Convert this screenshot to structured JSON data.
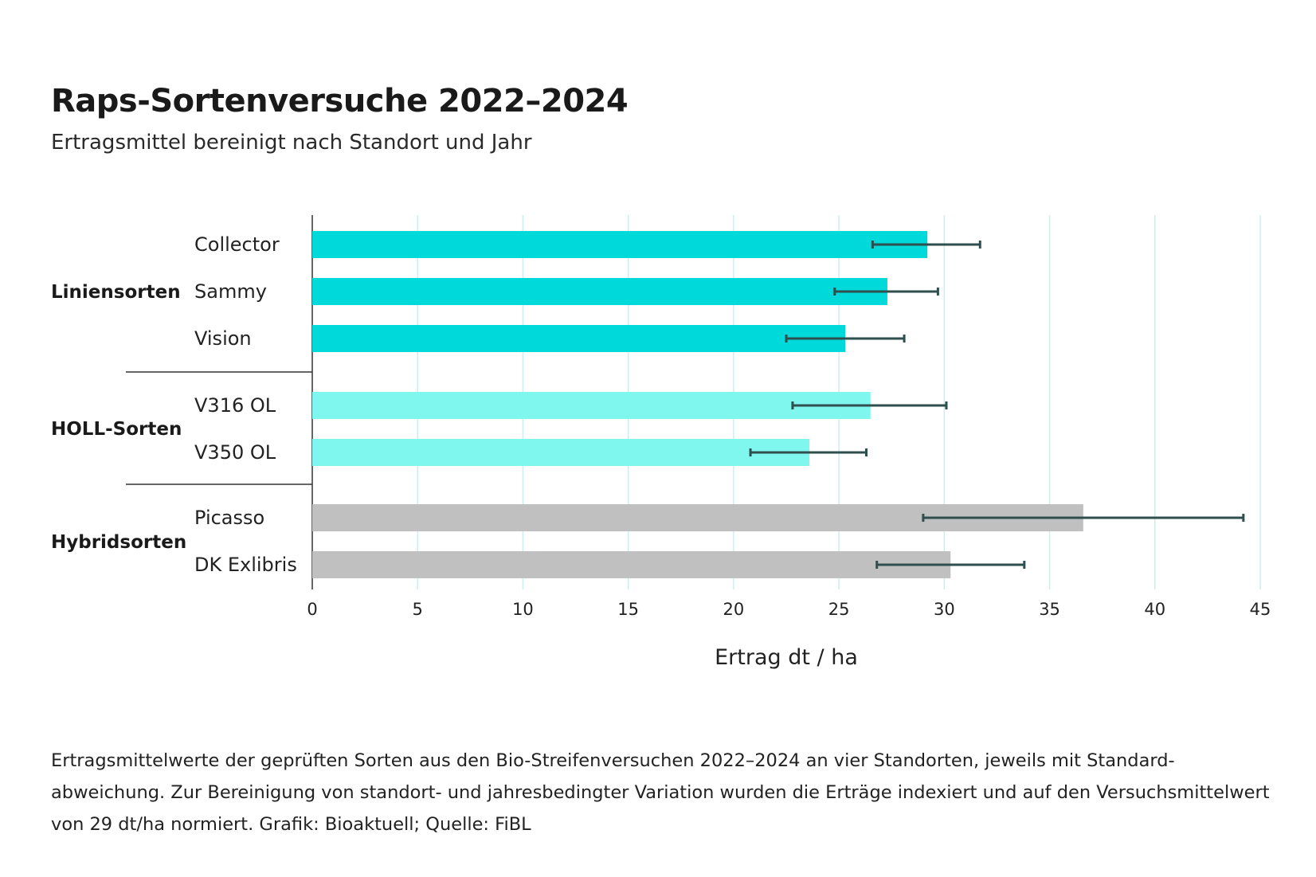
{
  "title": "Raps-Sortenversuche 2022–2024",
  "subtitle": "Ertragsmittel bereinigt nach Standort und Jahr",
  "caption": "Ertragsmittelwerte der geprüften Sorten aus den Bio-Streifenversuchen 2022–2024 an vier Standorten, jeweils mit Standard­abweichung. Zur Bereinigung von standort- und jahresbedingter Variation wurden die Erträge indexiert und auf den Versuchsmittel­wert von 29 dt/ha normiert. Grafik: Bioaktuell; Quelle: FiBL",
  "colors": {
    "linien": "#00d9d9",
    "holl": "#80f7ee",
    "hybrid": "#c0c0c0",
    "errorbar": "#2f4f4f",
    "grid": "#cdeeee"
  },
  "chart_data": {
    "type": "bar",
    "orientation": "horizontal",
    "xlabel": "Ertrag dt / ha",
    "xlim": [
      0,
      45
    ],
    "xticks": [
      0,
      5,
      10,
      15,
      20,
      25,
      30,
      35,
      40,
      45
    ],
    "grid": true,
    "groups": [
      {
        "name": "Liniensorten",
        "color_key": "linien",
        "items": [
          {
            "name": "Collector",
            "value": 29.2,
            "err_low": 26.6,
            "err_high": 31.7
          },
          {
            "name": "Sammy",
            "value": 27.3,
            "err_low": 24.8,
            "err_high": 29.7
          },
          {
            "name": "Vision",
            "value": 25.3,
            "err_low": 22.5,
            "err_high": 28.1
          }
        ]
      },
      {
        "name": "HOLL-Sorten",
        "color_key": "holl",
        "items": [
          {
            "name": "V316 OL",
            "value": 26.5,
            "err_low": 22.8,
            "err_high": 30.1
          },
          {
            "name": "V350 OL",
            "value": 23.6,
            "err_low": 20.8,
            "err_high": 26.3
          }
        ]
      },
      {
        "name": "Hybridsorten",
        "color_key": "hybrid",
        "items": [
          {
            "name": "Picasso",
            "value": 36.6,
            "err_low": 29.0,
            "err_high": 44.2
          },
          {
            "name": "DK Exlibris",
            "value": 30.3,
            "err_low": 26.8,
            "err_high": 33.8
          }
        ]
      }
    ]
  }
}
